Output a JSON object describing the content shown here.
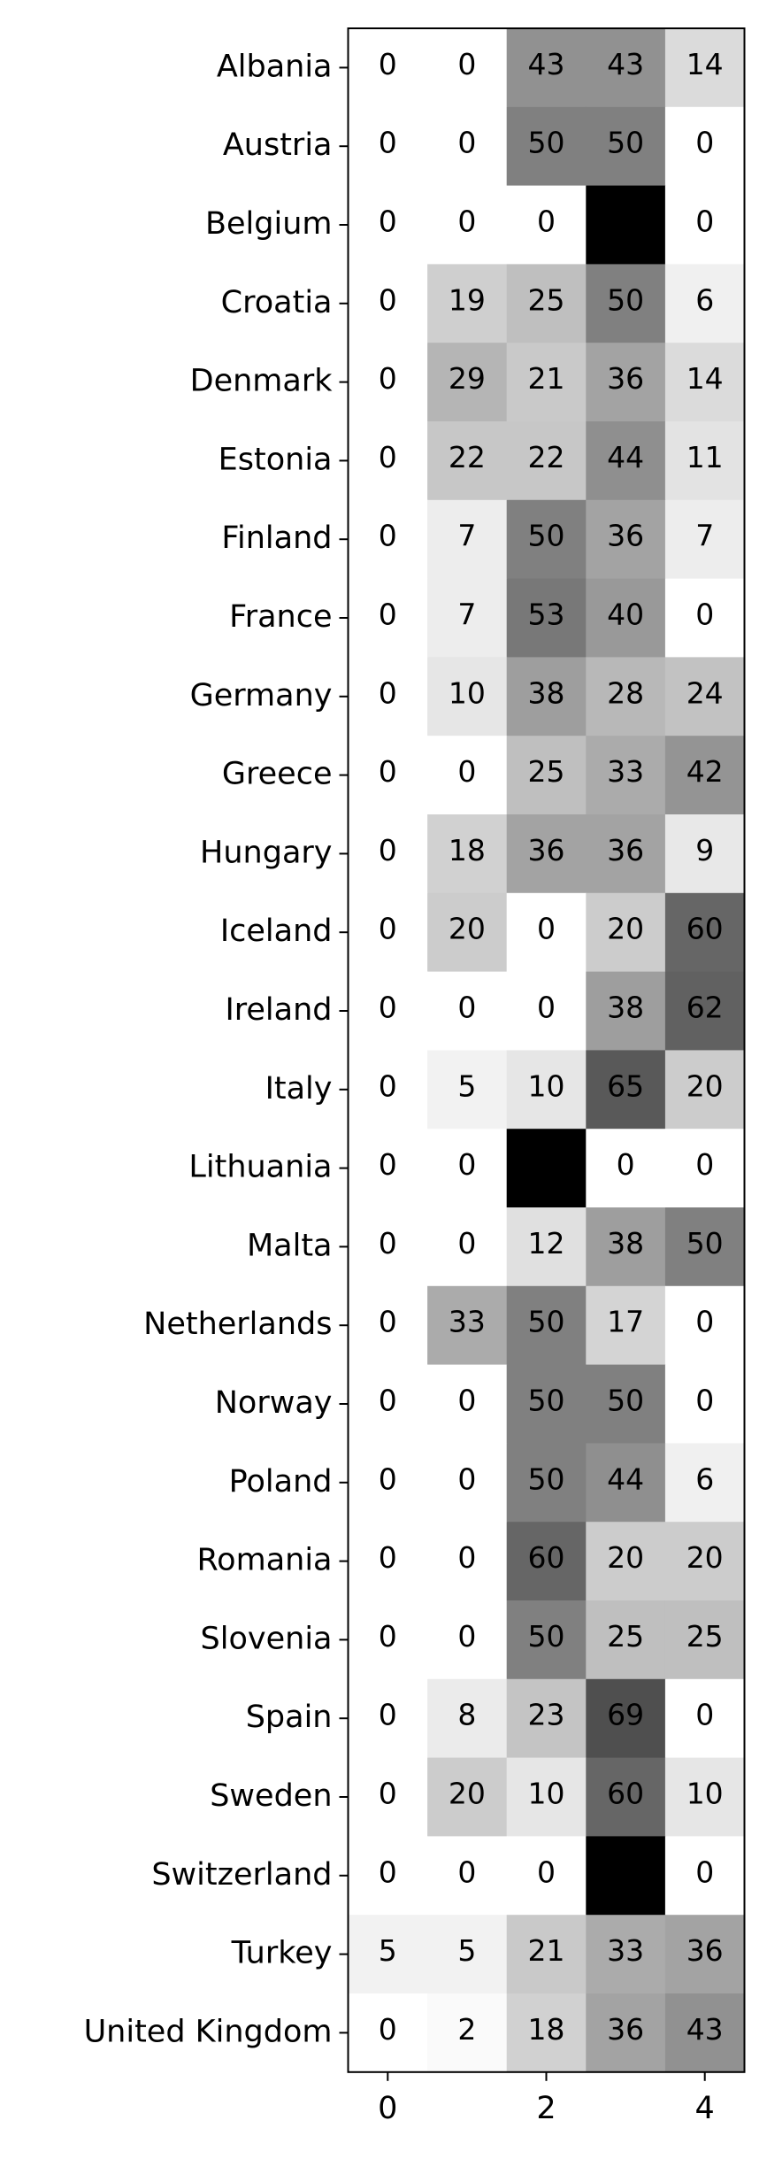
{
  "chart_data": {
    "type": "heatmap",
    "colormap": "gray_r",
    "vmin": 0,
    "vmax": 100,
    "rows": [
      "Albania",
      "Austria",
      "Belgium",
      "Croatia",
      "Denmark",
      "Estonia",
      "Finland",
      "France",
      "Germany",
      "Greece",
      "Hungary",
      "Iceland",
      "Ireland",
      "Italy",
      "Lithuania",
      "Malta",
      "Netherlands",
      "Norway",
      "Poland",
      "Romania",
      "Slovenia",
      "Spain",
      "Sweden",
      "Switzerland",
      "Turkey",
      "United Kingdom"
    ],
    "columns": [
      0,
      1,
      2,
      3,
      4
    ],
    "x_ticks": [
      "0",
      "2",
      "4"
    ],
    "values": [
      [
        0,
        0,
        43,
        43,
        14
      ],
      [
        0,
        0,
        50,
        50,
        0
      ],
      [
        0,
        0,
        0,
        100,
        0
      ],
      [
        0,
        19,
        25,
        50,
        6
      ],
      [
        0,
        29,
        21,
        36,
        14
      ],
      [
        0,
        22,
        22,
        44,
        11
      ],
      [
        0,
        7,
        50,
        36,
        7
      ],
      [
        0,
        7,
        53,
        40,
        0
      ],
      [
        0,
        10,
        38,
        28,
        24
      ],
      [
        0,
        0,
        25,
        33,
        42
      ],
      [
        0,
        18,
        36,
        36,
        9
      ],
      [
        0,
        20,
        0,
        20,
        60
      ],
      [
        0,
        0,
        0,
        38,
        62
      ],
      [
        0,
        5,
        10,
        65,
        20
      ],
      [
        0,
        0,
        100,
        0,
        0
      ],
      [
        0,
        0,
        12,
        38,
        50
      ],
      [
        0,
        33,
        50,
        17,
        0
      ],
      [
        0,
        0,
        50,
        50,
        0
      ],
      [
        0,
        0,
        50,
        44,
        6
      ],
      [
        0,
        0,
        60,
        20,
        20
      ],
      [
        0,
        0,
        50,
        25,
        25
      ],
      [
        0,
        8,
        23,
        69,
        0
      ],
      [
        0,
        20,
        10,
        60,
        10
      ],
      [
        0,
        0,
        0,
        100,
        0
      ],
      [
        5,
        5,
        21,
        33,
        36
      ],
      [
        0,
        2,
        18,
        36,
        43
      ]
    ],
    "title": "",
    "xlabel": "",
    "ylabel": "",
    "grid": false,
    "legend": "none"
  }
}
